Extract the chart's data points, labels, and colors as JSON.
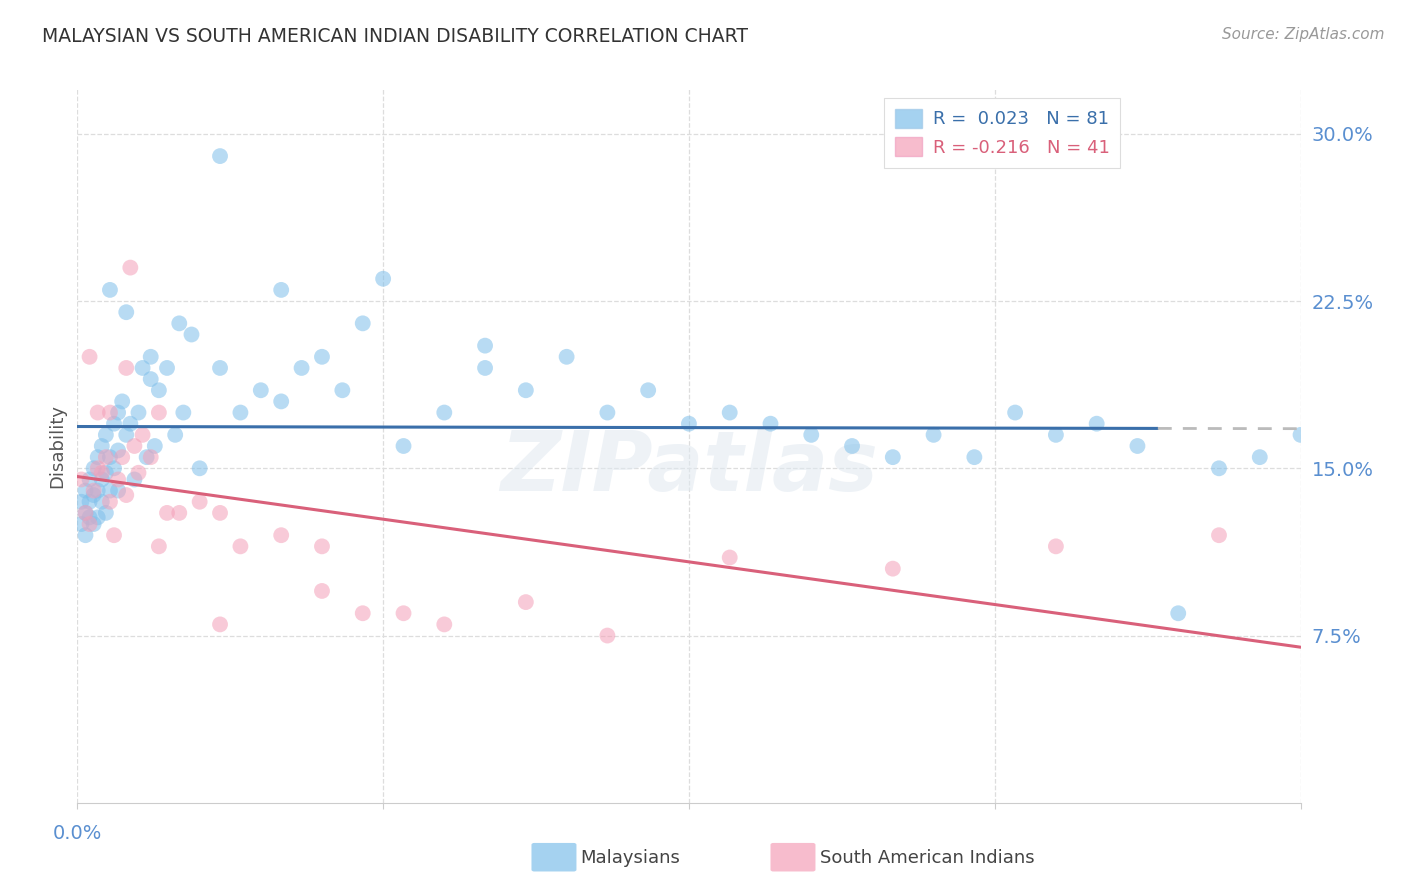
{
  "title": "MALAYSIAN VS SOUTH AMERICAN INDIAN DISABILITY CORRELATION CHART",
  "source": "Source: ZipAtlas.com",
  "ylabel": "Disability",
  "ytick_values": [
    0.075,
    0.15,
    0.225,
    0.3
  ],
  "ytick_labels": [
    "7.5%",
    "15.0%",
    "22.5%",
    "30.0%"
  ],
  "xlim": [
    0.0,
    0.3
  ],
  "ylim": [
    0.0,
    0.32
  ],
  "watermark": "ZIPatlas",
  "blue_color": "#7fbfea",
  "pink_color": "#f4a0b8",
  "blue_line_color": "#3a6faa",
  "pink_line_color": "#d9607a",
  "dashed_line_color": "#bbbbbb",
  "grid_color": "#dddddd",
  "title_color": "#333333",
  "axis_label_color": "#555555",
  "tick_color": "#5a8fd0",
  "source_color": "#999999",
  "legend_blue_text": "R =  0.023   N = 81",
  "legend_pink_text": "R = -0.216   N = 41",
  "bottom_legend": [
    "Malaysians",
    "South American Indians"
  ],
  "malaysian_x": [
    0.001,
    0.001,
    0.002,
    0.002,
    0.002,
    0.003,
    0.003,
    0.003,
    0.004,
    0.004,
    0.004,
    0.005,
    0.005,
    0.005,
    0.006,
    0.006,
    0.006,
    0.007,
    0.007,
    0.007,
    0.008,
    0.008,
    0.009,
    0.009,
    0.01,
    0.01,
    0.01,
    0.011,
    0.012,
    0.013,
    0.014,
    0.015,
    0.016,
    0.017,
    0.018,
    0.019,
    0.02,
    0.022,
    0.024,
    0.026,
    0.028,
    0.03,
    0.035,
    0.04,
    0.045,
    0.05,
    0.055,
    0.06,
    0.065,
    0.07,
    0.08,
    0.09,
    0.1,
    0.11,
    0.12,
    0.13,
    0.14,
    0.15,
    0.16,
    0.17,
    0.18,
    0.19,
    0.2,
    0.21,
    0.22,
    0.23,
    0.24,
    0.25,
    0.26,
    0.27,
    0.28,
    0.29,
    0.3,
    0.008,
    0.012,
    0.018,
    0.025,
    0.035,
    0.05,
    0.075,
    0.1
  ],
  "malaysian_y": [
    0.135,
    0.125,
    0.14,
    0.13,
    0.12,
    0.145,
    0.135,
    0.128,
    0.15,
    0.138,
    0.125,
    0.155,
    0.14,
    0.128,
    0.16,
    0.145,
    0.135,
    0.165,
    0.148,
    0.13,
    0.155,
    0.14,
    0.17,
    0.15,
    0.175,
    0.158,
    0.14,
    0.18,
    0.165,
    0.17,
    0.145,
    0.175,
    0.195,
    0.155,
    0.2,
    0.16,
    0.185,
    0.195,
    0.165,
    0.175,
    0.21,
    0.15,
    0.195,
    0.175,
    0.185,
    0.18,
    0.195,
    0.2,
    0.185,
    0.215,
    0.16,
    0.175,
    0.195,
    0.185,
    0.2,
    0.175,
    0.185,
    0.17,
    0.175,
    0.17,
    0.165,
    0.16,
    0.155,
    0.165,
    0.155,
    0.175,
    0.165,
    0.17,
    0.16,
    0.085,
    0.15,
    0.155,
    0.165,
    0.23,
    0.22,
    0.19,
    0.215,
    0.29,
    0.23,
    0.235,
    0.205
  ],
  "sai_x": [
    0.001,
    0.002,
    0.003,
    0.004,
    0.005,
    0.006,
    0.007,
    0.008,
    0.009,
    0.01,
    0.011,
    0.012,
    0.013,
    0.014,
    0.015,
    0.016,
    0.018,
    0.02,
    0.022,
    0.025,
    0.03,
    0.035,
    0.04,
    0.05,
    0.06,
    0.07,
    0.08,
    0.09,
    0.11,
    0.13,
    0.16,
    0.2,
    0.24,
    0.28,
    0.003,
    0.005,
    0.008,
    0.012,
    0.02,
    0.035,
    0.06
  ],
  "sai_y": [
    0.145,
    0.13,
    0.125,
    0.14,
    0.15,
    0.148,
    0.155,
    0.135,
    0.12,
    0.145,
    0.155,
    0.138,
    0.24,
    0.16,
    0.148,
    0.165,
    0.155,
    0.175,
    0.13,
    0.13,
    0.135,
    0.13,
    0.115,
    0.12,
    0.115,
    0.085,
    0.085,
    0.08,
    0.09,
    0.075,
    0.11,
    0.105,
    0.115,
    0.12,
    0.2,
    0.175,
    0.175,
    0.195,
    0.115,
    0.08,
    0.095
  ]
}
